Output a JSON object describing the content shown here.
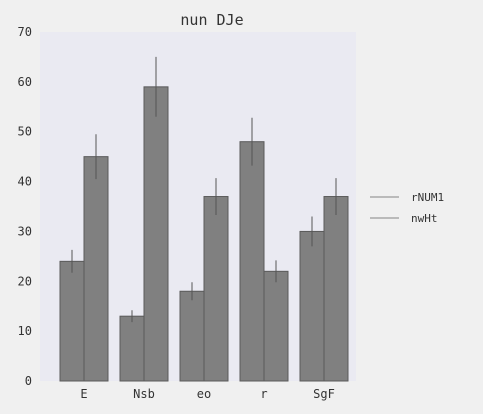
{
  "chart_data": {
    "type": "bar",
    "title": "nun DJe",
    "xlabel": "",
    "ylabel": "",
    "categories": [
      "E",
      "Nsb",
      "eo",
      "r",
      "SgF"
    ],
    "ylim": [
      0,
      70
    ],
    "yticks": [
      0,
      10,
      20,
      30,
      40,
      50,
      60,
      70
    ],
    "grid": false,
    "legend_placement": "right",
    "series": [
      {
        "name": "rNUM1",
        "values": [
          24,
          13,
          18,
          48,
          30
        ],
        "errors": [
          2.3,
          1.2,
          1.8,
          4.8,
          3.0
        ]
      },
      {
        "name": "nwHt",
        "values": [
          45,
          59,
          37,
          22,
          37
        ],
        "errors": [
          4.5,
          6.0,
          3.7,
          2.2,
          3.7
        ]
      }
    ],
    "colors": {
      "plot_background": "#eaeaf2",
      "page_background": "#f0f0f0",
      "bar_fill": "#808080",
      "bar_edge": "#5a5a5a",
      "error_bar": "#555555",
      "legend_line": "#999999"
    }
  }
}
